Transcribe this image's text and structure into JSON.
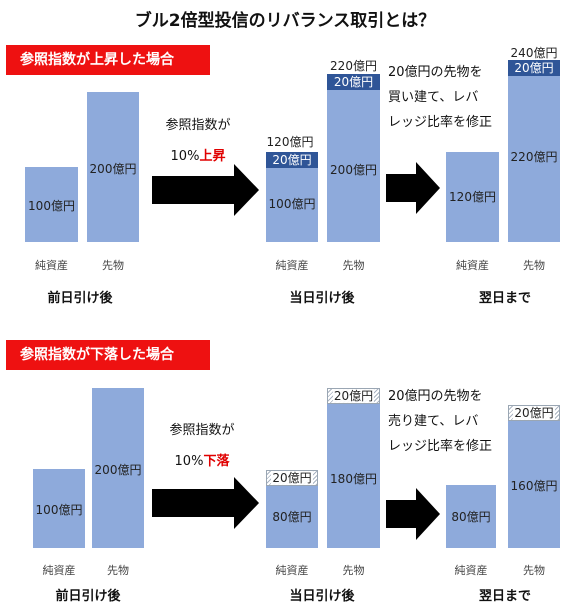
{
  "title": "ブル2倍型投信のリバランス取引とは？",
  "colors": {
    "banner": "#ee1111",
    "bar": "#8eaadb",
    "cap": "#2f5597",
    "highlight": "#e00000"
  },
  "labels": {
    "net_assets": "純資産",
    "futures": "先物",
    "prev_close": "前日引け後",
    "today_close": "当日引け後",
    "next_day": "翌日まで"
  },
  "up": {
    "banner": "参照指数が上昇した場合",
    "move_line1": "参照指数が",
    "move_pct": "10%",
    "move_word": "上昇",
    "prev": {
      "net": "100億円",
      "fut": "200億円"
    },
    "today": {
      "net_total": "120億円",
      "net_inc": "20億円",
      "net_base": "100億円",
      "fut_total": "220億円",
      "fut_inc": "20億円",
      "fut_base": "200億円"
    },
    "annotation": [
      "20億円の先物を",
      "買い建て、レバ",
      "レッジ比率を修正"
    ],
    "next": {
      "net": "120億円",
      "fut_total": "240億円",
      "fut_inc": "20億円",
      "fut_base": "220億円"
    }
  },
  "down": {
    "banner": "参照指数が下落した場合",
    "move_line1": "参照指数が",
    "move_pct": "10%",
    "move_word": "下落",
    "prev": {
      "net": "100億円",
      "fut": "200億円"
    },
    "today": {
      "net_loss": "20億円",
      "net_base": "80億円",
      "fut_loss": "20億円",
      "fut_base": "180億円"
    },
    "annotation": [
      "20億円の先物を",
      "売り建て、レバ",
      "レッジ比率を修正"
    ],
    "next": {
      "net": "80億円",
      "fut_loss": "20億円",
      "fut_base": "160億円"
    }
  }
}
